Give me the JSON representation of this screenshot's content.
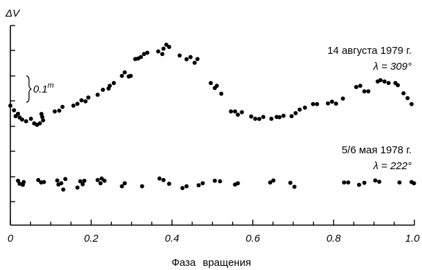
{
  "chart_data": {
    "type": "scatter",
    "ylabel": "ΔV",
    "xlabel": "Фаза вращения",
    "xlim": [
      0,
      1.0
    ],
    "x_ticks": [
      "0",
      "0.2",
      "0.4",
      "0.6",
      "0.8",
      "1.0"
    ],
    "scale_bar": {
      "label": "0.1",
      "superscript": "m",
      "magnitude": 0.1
    },
    "grid": false,
    "series": [
      {
        "label_date": "14 августа 1979 г.",
        "label_lambda": "λ = 309°",
        "points": [
          [
            0.0,
            0.0
          ],
          [
            0.009,
            -0.018
          ],
          [
            0.013,
            -0.042
          ],
          [
            0.019,
            -0.032
          ],
          [
            0.023,
            -0.047
          ],
          [
            0.029,
            -0.055
          ],
          [
            0.039,
            -0.062
          ],
          [
            0.051,
            -0.052
          ],
          [
            0.059,
            -0.07
          ],
          [
            0.066,
            -0.076
          ],
          [
            0.073,
            -0.07
          ],
          [
            0.079,
            -0.045
          ],
          [
            0.081,
            -0.058
          ],
          [
            0.077,
            -0.033
          ],
          [
            0.11,
            -0.023
          ],
          [
            0.121,
            -0.02
          ],
          [
            0.129,
            -0.005
          ],
          [
            0.156,
            0.0
          ],
          [
            0.166,
            0.007
          ],
          [
            0.176,
            0.021
          ],
          [
            0.186,
            0.017
          ],
          [
            0.193,
            0.032
          ],
          [
            0.216,
            0.043
          ],
          [
            0.229,
            0.063
          ],
          [
            0.246,
            0.079
          ],
          [
            0.256,
            0.09
          ],
          [
            0.243,
            0.068
          ],
          [
            0.276,
            0.118
          ],
          [
            0.283,
            0.132
          ],
          [
            0.293,
            0.116
          ],
          [
            0.298,
            0.118
          ],
          [
            0.309,
            0.185
          ],
          [
            0.316,
            0.187
          ],
          [
            0.323,
            0.193
          ],
          [
            0.331,
            0.205
          ],
          [
            0.339,
            0.21
          ],
          [
            0.366,
            0.215
          ],
          [
            0.376,
            0.205
          ],
          [
            0.379,
            0.226
          ],
          [
            0.386,
            0.242
          ],
          [
            0.393,
            0.233
          ],
          [
            0.419,
            0.199
          ],
          [
            0.436,
            0.184
          ],
          [
            0.446,
            0.193
          ],
          [
            0.456,
            0.17
          ],
          [
            0.463,
            0.185
          ],
          [
            0.496,
            0.09
          ],
          [
            0.506,
            0.07
          ],
          [
            0.511,
            0.079
          ],
          [
            0.522,
            0.047
          ],
          [
            0.546,
            -0.023
          ],
          [
            0.556,
            -0.023
          ],
          [
            0.563,
            -0.036
          ],
          [
            0.573,
            -0.026
          ],
          [
            0.596,
            -0.043
          ],
          [
            0.606,
            -0.052
          ],
          [
            0.616,
            -0.053
          ],
          [
            0.626,
            -0.045
          ],
          [
            0.646,
            -0.052
          ],
          [
            0.659,
            -0.045
          ],
          [
            0.666,
            -0.046
          ],
          [
            0.676,
            -0.04
          ],
          [
            0.696,
            -0.042
          ],
          [
            0.706,
            -0.03
          ],
          [
            0.716,
            -0.016
          ],
          [
            0.729,
            -0.008
          ],
          [
            0.749,
            0.006
          ],
          [
            0.759,
            0.006
          ],
          [
            0.786,
            0.009
          ],
          [
            0.796,
            0.016
          ],
          [
            0.806,
            0.008
          ],
          [
            0.823,
            0.028
          ],
          [
            0.856,
            0.074
          ],
          [
            0.866,
            0.079
          ],
          [
            0.876,
            0.057
          ],
          [
            0.886,
            0.057
          ],
          [
            0.909,
            0.096
          ],
          [
            0.916,
            0.101
          ],
          [
            0.926,
            0.096
          ],
          [
            0.936,
            0.09
          ],
          [
            0.953,
            0.09
          ],
          [
            0.959,
            0.081
          ],
          [
            0.973,
            0.049
          ],
          [
            0.983,
            0.03
          ],
          [
            0.993,
            0.006
          ]
        ]
      },
      {
        "label_date": "5/6 мая 1978 г.",
        "label_lambda": "λ = 222°",
        "points": [
          [
            0.019,
            -0.298
          ],
          [
            0.023,
            -0.31
          ],
          [
            0.031,
            -0.314
          ],
          [
            0.033,
            -0.303
          ],
          [
            0.069,
            -0.295
          ],
          [
            0.076,
            -0.305
          ],
          [
            0.083,
            -0.303
          ],
          [
            0.116,
            -0.297
          ],
          [
            0.119,
            -0.313
          ],
          [
            0.126,
            -0.308
          ],
          [
            0.136,
            -0.291
          ],
          [
            0.131,
            -0.333
          ],
          [
            0.166,
            -0.325
          ],
          [
            0.173,
            -0.3
          ],
          [
            0.183,
            -0.298
          ],
          [
            0.179,
            -0.312
          ],
          [
            0.216,
            -0.295
          ],
          [
            0.223,
            -0.308
          ],
          [
            0.226,
            -0.289
          ],
          [
            0.233,
            -0.298
          ],
          [
            0.276,
            -0.32
          ],
          [
            0.283,
            -0.308
          ],
          [
            0.326,
            -0.32
          ],
          [
            0.369,
            -0.289
          ],
          [
            0.379,
            -0.295
          ],
          [
            0.393,
            -0.31
          ],
          [
            0.426,
            -0.327
          ],
          [
            0.436,
            -0.32
          ],
          [
            0.466,
            -0.316
          ],
          [
            0.476,
            -0.308
          ],
          [
            0.506,
            -0.298
          ],
          [
            0.519,
            -0.3
          ],
          [
            0.556,
            -0.313
          ],
          [
            0.563,
            -0.308
          ],
          [
            0.643,
            -0.305
          ],
          [
            0.651,
            -0.297
          ],
          [
            0.693,
            -0.306
          ],
          [
            0.703,
            -0.322
          ],
          [
            0.826,
            -0.305
          ],
          [
            0.836,
            -0.305
          ],
          [
            0.863,
            -0.314
          ],
          [
            0.876,
            -0.306
          ],
          [
            0.903,
            -0.297
          ],
          [
            0.913,
            -0.302
          ],
          [
            0.963,
            -0.305
          ],
          [
            0.993,
            -0.303
          ],
          [
            0.999,
            -0.308
          ]
        ]
      }
    ]
  }
}
